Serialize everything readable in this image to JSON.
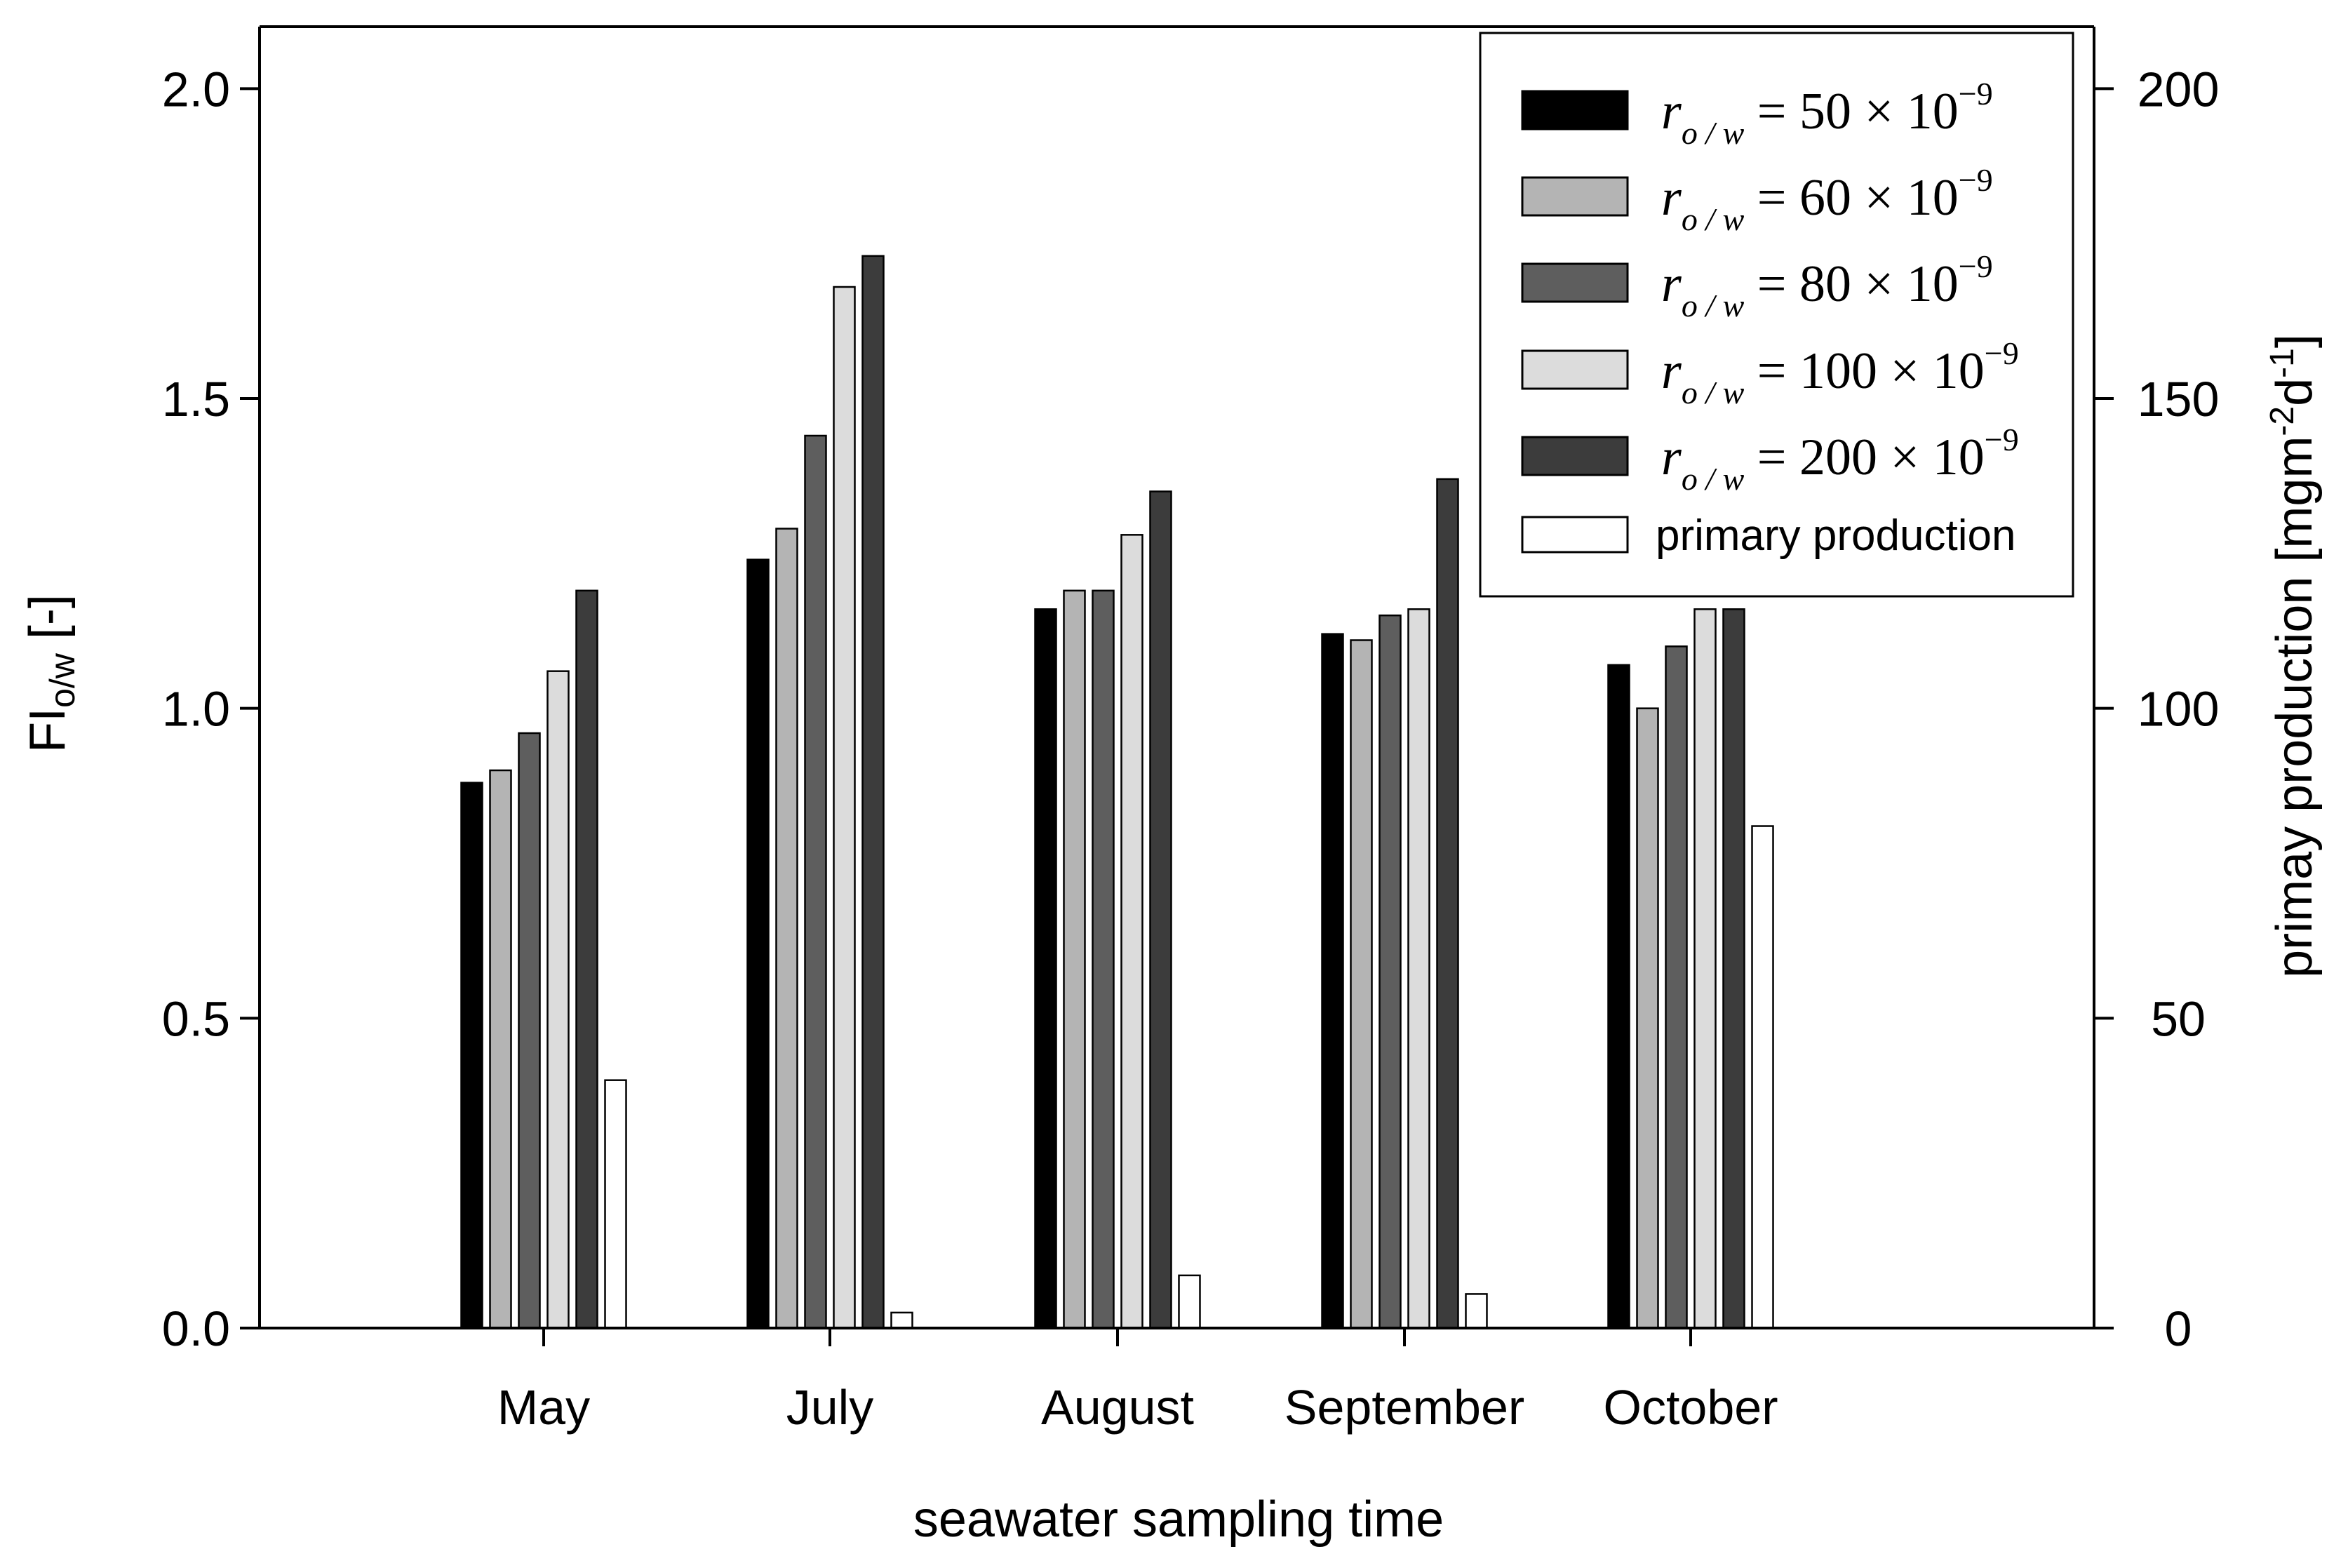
{
  "chart_data": {
    "type": "bar",
    "categories": [
      "May",
      "July",
      "August",
      "September",
      "October"
    ],
    "series": [
      {
        "name": "r_o/w = 50×10^-9",
        "legend_lhs": "r",
        "legend_sub": "o / w",
        "legend_rhs": "= 50 × 10",
        "legend_exp": "−9",
        "color": "#000000",
        "axis": "left",
        "values": [
          0.88,
          1.24,
          1.16,
          1.12,
          1.07
        ]
      },
      {
        "name": "r_o/w = 60×10^-9",
        "legend_lhs": "r",
        "legend_sub": "o / w",
        "legend_rhs": "= 60 × 10",
        "legend_exp": "−9",
        "color": "#b4b4b4",
        "axis": "left",
        "values": [
          0.9,
          1.29,
          1.19,
          1.11,
          1.0
        ]
      },
      {
        "name": "r_o/w = 80×10^-9",
        "legend_lhs": "r",
        "legend_sub": "o / w",
        "legend_rhs": "= 80 × 10",
        "legend_exp": "−9",
        "color": "#5e5e5e",
        "axis": "left",
        "values": [
          0.96,
          1.44,
          1.19,
          1.15,
          1.1
        ]
      },
      {
        "name": "r_o/w = 100×10^-9",
        "legend_lhs": "r",
        "legend_sub": "o / w",
        "legend_rhs": "= 100 × 10",
        "legend_exp": "−9",
        "color": "#dcdcdc",
        "axis": "left",
        "values": [
          1.06,
          1.68,
          1.28,
          1.16,
          1.16
        ]
      },
      {
        "name": "r_o/w = 200×10^-9",
        "legend_lhs": "r",
        "legend_sub": "o / w",
        "legend_rhs": "= 200 × 10",
        "legend_exp": "−9",
        "color": "#3c3c3c",
        "axis": "left",
        "values": [
          1.19,
          1.73,
          1.35,
          1.37,
          1.16
        ]
      },
      {
        "name": "primary production",
        "legend_label": "primary production",
        "color": "#ffffff",
        "axis": "right",
        "values": [
          40,
          2.5,
          8.5,
          5.5,
          81
        ]
      }
    ],
    "left_axis": {
      "label_main": "FI",
      "label_sub": "o/w",
      "label_suffix": " [-]",
      "ylim": [
        0,
        2.1
      ],
      "ticks": [
        0.0,
        0.5,
        1.0,
        1.5,
        2.0
      ],
      "tick_labels": [
        "0.0",
        "0.5",
        "1.0",
        "1.5",
        "2.0"
      ]
    },
    "right_axis": {
      "label": "primay production [mgm",
      "label_sup1": "-2",
      "label_mid": "d",
      "label_sup2": "-1",
      "label_end": "]",
      "ylim": [
        0,
        210
      ],
      "ticks": [
        0,
        50,
        100,
        150,
        200
      ],
      "tick_labels": [
        "0",
        "50",
        "100",
        "150",
        "200"
      ]
    },
    "xlabel": "seawater sampling time",
    "legend_position": "top-right"
  }
}
